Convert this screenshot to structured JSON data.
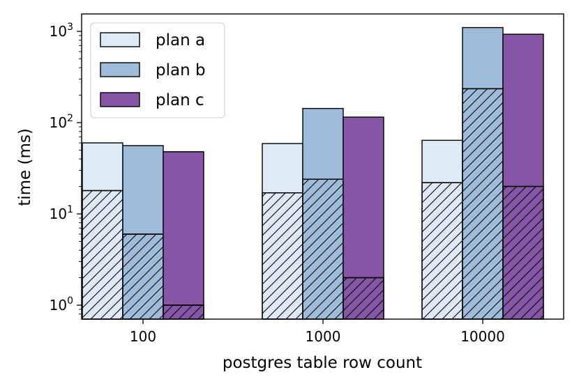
{
  "chart_data": {
    "type": "bar",
    "yscale": "log",
    "xlabel": "postgres table row count",
    "ylabel": "time (ms)",
    "ylim": [
      0.72,
      1500
    ],
    "yticks": [
      {
        "value": 1,
        "base": "10",
        "exp": "0"
      },
      {
        "value": 10,
        "base": "10",
        "exp": "1"
      },
      {
        "value": 100,
        "base": "10",
        "exp": "2"
      },
      {
        "value": 1000,
        "base": "10",
        "exp": "3"
      }
    ],
    "categories": [
      "100",
      "1000",
      "10000"
    ],
    "stacking": "each bar has a hatched lower segment and a solid upper segment ending at total",
    "series": [
      {
        "name": "plan a",
        "color": "#deebf7",
        "total": [
          60,
          59,
          64
        ],
        "hatched": [
          18,
          17,
          22
        ]
      },
      {
        "name": "plan b",
        "color": "#9ebcda",
        "total": [
          56,
          143,
          1100
        ],
        "hatched": [
          6,
          24,
          235
        ]
      },
      {
        "name": "plan c",
        "color": "#8856a7",
        "total": [
          48,
          115,
          930
        ],
        "hatched": [
          1,
          2,
          20
        ]
      }
    ],
    "legend": {
      "position": "top-left"
    },
    "grid": false
  }
}
